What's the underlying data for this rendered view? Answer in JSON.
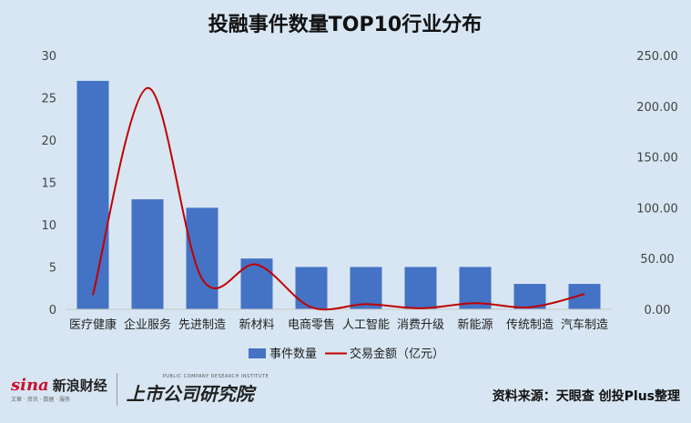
{
  "chart_data": {
    "type": "bar",
    "title": "投融事件数量TOP10行业分布",
    "categories": [
      "医疗健康",
      "企业服务",
      "先进制造",
      "新材料",
      "电商零售",
      "人工智能",
      "消费升级",
      "新能源",
      "传统制造",
      "汽车制造"
    ],
    "series": [
      {
        "name": "事件数量",
        "type": "bar",
        "axis": "left",
        "color": "#4472c4",
        "values": [
          27,
          13,
          12,
          6,
          5,
          5,
          5,
          5,
          3,
          3
        ]
      },
      {
        "name": "交易金额（亿元）",
        "type": "line",
        "axis": "right",
        "color": "#c00000",
        "values": [
          14,
          218,
          30,
          44,
          2,
          5,
          1,
          6,
          2,
          15
        ]
      }
    ],
    "y_left": {
      "lim": [
        0,
        30
      ],
      "ticks": [
        "0",
        "5",
        "10",
        "15",
        "20",
        "25",
        "30"
      ]
    },
    "y_right": {
      "lim": [
        0,
        250
      ],
      "ticks": [
        "0.00",
        "50.00",
        "100.00",
        "150.00",
        "200.00",
        "250.00"
      ]
    },
    "grid": false,
    "legend_position": "bottom"
  },
  "footer": {
    "logo_sina": "sina",
    "logo_sina_cn": "新浪财经",
    "logo_sina_sub": "文章 · 资讯 · 数据 · 服务",
    "logo_institute": "上市公司研究院",
    "logo_institute_sub": "PUBLIC COMPANY RESEARCH INSTITUTE",
    "source": "资料来源：天眼查 创投Plus整理"
  }
}
